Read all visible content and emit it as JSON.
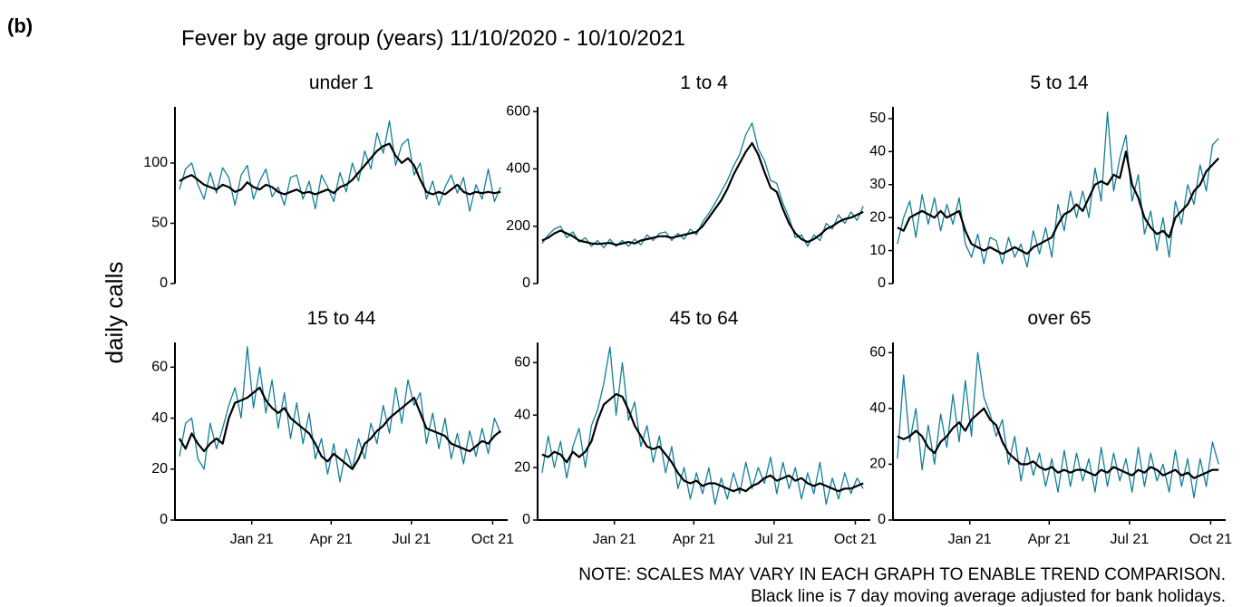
{
  "panel_label": "(b)",
  "title": "Fever by age group (years) 11/10/2020 - 10/10/2021",
  "y_label": "daily calls",
  "notes": [
    "NOTE: SCALES MAY VARY IN EACH GRAPH TO ENABLE TREND COMPARISON.",
    "Black line is 7 day moving average adjusted for bank holidays."
  ],
  "chart_data": [
    {
      "type": "line",
      "title": "under 1",
      "x": [
        0,
        7,
        14,
        21,
        28,
        35,
        42,
        49,
        56,
        63,
        70,
        77,
        84,
        91,
        98,
        105,
        112,
        119,
        126,
        133,
        140,
        147,
        154,
        161,
        168,
        175,
        182,
        189,
        196,
        203,
        210,
        217,
        224,
        231,
        238,
        245,
        252,
        259,
        266,
        273,
        280,
        287,
        294,
        301,
        308,
        315,
        322,
        329,
        336,
        343,
        350,
        357,
        364
      ],
      "series": [
        {
          "color": "#147f97",
          "values": [
            78,
            95,
            100,
            82,
            70,
            92,
            75,
            96,
            88,
            65,
            90,
            98,
            70,
            85,
            95,
            72,
            80,
            65,
            88,
            90,
            70,
            85,
            62,
            90,
            80,
            68,
            92,
            76,
            100,
            85,
            110,
            95,
            125,
            108,
            135,
            98,
            115,
            120,
            90,
            100,
            70,
            85,
            65,
            80,
            90,
            75,
            88,
            60,
            82,
            70,
            95,
            68,
            80
          ]
        },
        {
          "color": "#000000",
          "values": [
            85,
            88,
            90,
            86,
            82,
            80,
            78,
            82,
            80,
            76,
            78,
            84,
            80,
            78,
            82,
            80,
            76,
            74,
            76,
            78,
            75,
            76,
            74,
            76,
            78,
            75,
            80,
            82,
            86,
            92,
            98,
            104,
            110,
            114,
            116,
            106,
            100,
            104,
            98,
            86,
            76,
            74,
            76,
            74,
            78,
            82,
            76,
            74,
            76,
            75,
            76,
            75,
            76
          ]
        }
      ],
      "xlim": [
        -5,
        372
      ],
      "ylim": [
        0,
        145
      ],
      "yticks": [
        0,
        50,
        100
      ]
    },
    {
      "type": "line",
      "title": "1 to 4",
      "x": [
        0,
        7,
        14,
        21,
        28,
        35,
        42,
        49,
        56,
        63,
        70,
        77,
        84,
        91,
        98,
        105,
        112,
        119,
        126,
        133,
        140,
        147,
        154,
        161,
        168,
        175,
        182,
        189,
        196,
        203,
        210,
        217,
        224,
        231,
        238,
        245,
        252,
        259,
        266,
        273,
        280,
        287,
        294,
        301,
        308,
        315,
        322,
        329,
        336,
        343,
        350,
        357,
        364
      ],
      "series": [
        {
          "color": "#147f97",
          "values": [
            140,
            170,
            190,
            200,
            160,
            180,
            145,
            160,
            130,
            150,
            125,
            155,
            130,
            150,
            130,
            155,
            135,
            170,
            150,
            175,
            180,
            150,
            175,
            155,
            190,
            170,
            215,
            245,
            280,
            320,
            360,
            410,
            450,
            520,
            560,
            470,
            430,
            360,
            350,
            280,
            230,
            160,
            170,
            130,
            170,
            150,
            210,
            190,
            240,
            210,
            250,
            220,
            270
          ]
        },
        {
          "color": "#000000",
          "values": [
            150,
            160,
            175,
            185,
            175,
            165,
            150,
            145,
            140,
            138,
            140,
            142,
            135,
            140,
            145,
            140,
            150,
            155,
            160,
            165,
            165,
            160,
            165,
            170,
            175,
            180,
            200,
            230,
            260,
            290,
            330,
            380,
            420,
            460,
            490,
            450,
            390,
            335,
            320,
            260,
            210,
            175,
            155,
            145,
            155,
            170,
            190,
            200,
            215,
            225,
            230,
            240,
            250
          ]
        }
      ],
      "xlim": [
        -5,
        372
      ],
      "ylim": [
        0,
        610
      ],
      "yticks": [
        0,
        200,
        400,
        600
      ]
    },
    {
      "type": "line",
      "title": "5 to 14",
      "x": [
        0,
        7,
        14,
        21,
        28,
        35,
        42,
        49,
        56,
        63,
        70,
        77,
        84,
        91,
        98,
        105,
        112,
        119,
        126,
        133,
        140,
        147,
        154,
        161,
        168,
        175,
        182,
        189,
        196,
        203,
        210,
        217,
        224,
        231,
        238,
        245,
        252,
        259,
        266,
        273,
        280,
        287,
        294,
        301,
        308,
        315,
        322,
        329,
        336,
        343,
        350,
        357,
        364
      ],
      "series": [
        {
          "color": "#147f97",
          "values": [
            12,
            20,
            25,
            14,
            27,
            18,
            26,
            16,
            24,
            18,
            26,
            12,
            8,
            15,
            6,
            14,
            13,
            6,
            14,
            8,
            12,
            5,
            16,
            9,
            17,
            8,
            24,
            16,
            28,
            20,
            28,
            20,
            35,
            25,
            52,
            28,
            38,
            45,
            25,
            33,
            15,
            22,
            10,
            20,
            8,
            25,
            18,
            30,
            24,
            36,
            28,
            42,
            44
          ]
        },
        {
          "color": "#000000",
          "values": [
            17,
            16,
            20,
            21,
            22,
            21,
            20,
            22,
            20,
            21,
            22,
            16,
            12,
            11,
            10,
            11,
            10,
            9,
            10,
            11,
            10,
            9,
            11,
            12,
            13,
            14,
            18,
            21,
            22,
            24,
            22,
            26,
            30,
            31,
            30,
            33,
            32,
            40,
            30,
            26,
            20,
            17,
            15,
            16,
            14,
            20,
            22,
            24,
            28,
            30,
            34,
            36,
            38
          ]
        }
      ],
      "xlim": [
        -5,
        372
      ],
      "ylim": [
        0,
        53
      ],
      "yticks": [
        0,
        10,
        20,
        30,
        40,
        50
      ]
    },
    {
      "type": "line",
      "title": "15 to 44",
      "x": [
        0,
        7,
        14,
        21,
        28,
        35,
        42,
        49,
        56,
        63,
        70,
        77,
        84,
        91,
        98,
        105,
        112,
        119,
        126,
        133,
        140,
        147,
        154,
        161,
        168,
        175,
        182,
        189,
        196,
        203,
        210,
        217,
        224,
        231,
        238,
        245,
        252,
        259,
        266,
        273,
        280,
        287,
        294,
        301,
        308,
        315,
        322,
        329,
        336,
        343,
        350,
        357,
        364
      ],
      "series": [
        {
          "color": "#147f97",
          "values": [
            25,
            38,
            40,
            24,
            20,
            38,
            28,
            36,
            45,
            52,
            40,
            68,
            44,
            60,
            42,
            55,
            36,
            50,
            32,
            46,
            30,
            42,
            24,
            32,
            18,
            30,
            15,
            28,
            20,
            32,
            24,
            38,
            30,
            45,
            34,
            52,
            38,
            55,
            45,
            50,
            30,
            42,
            28,
            40,
            24,
            34,
            22,
            35,
            25,
            36,
            26,
            40,
            34
          ]
        },
        {
          "color": "#000000",
          "values": [
            32,
            28,
            34,
            30,
            27,
            30,
            32,
            30,
            40,
            46,
            47,
            48,
            50,
            52,
            47,
            44,
            42,
            44,
            40,
            38,
            36,
            34,
            30,
            25,
            23,
            26,
            24,
            22,
            20,
            24,
            30,
            32,
            35,
            37,
            40,
            42,
            44,
            46,
            48,
            42,
            36,
            35,
            34,
            33,
            30,
            29,
            28,
            27,
            29,
            31,
            30,
            33,
            35
          ]
        }
      ],
      "xlim": [
        -5,
        372
      ],
      "ylim": [
        0,
        69
      ],
      "yticks": [
        0,
        20,
        40,
        60
      ],
      "xticks": [
        {
          "value": 82,
          "label": "Jan 21"
        },
        {
          "value": 172,
          "label": "Apr 21"
        },
        {
          "value": 263,
          "label": "Jul 21"
        },
        {
          "value": 355,
          "label": "Oct 21"
        }
      ]
    },
    {
      "type": "line",
      "title": "45 to 64",
      "x": [
        0,
        7,
        14,
        21,
        28,
        35,
        42,
        49,
        56,
        63,
        70,
        77,
        84,
        91,
        98,
        105,
        112,
        119,
        126,
        133,
        140,
        147,
        154,
        161,
        168,
        175,
        182,
        189,
        196,
        203,
        210,
        217,
        224,
        231,
        238,
        245,
        252,
        259,
        266,
        273,
        280,
        287,
        294,
        301,
        308,
        315,
        322,
        329,
        336,
        343,
        350,
        357,
        364
      ],
      "series": [
        {
          "color": "#147f97",
          "values": [
            18,
            32,
            20,
            30,
            16,
            28,
            35,
            20,
            36,
            42,
            52,
            66,
            40,
            60,
            38,
            45,
            28,
            36,
            22,
            32,
            18,
            28,
            12,
            20,
            8,
            18,
            10,
            20,
            6,
            16,
            8,
            18,
            10,
            22,
            12,
            20,
            14,
            24,
            10,
            22,
            12,
            20,
            8,
            18,
            10,
            22,
            6,
            16,
            8,
            18,
            10,
            16,
            12
          ]
        },
        {
          "color": "#000000",
          "values": [
            25,
            24,
            26,
            25,
            22,
            26,
            24,
            26,
            30,
            38,
            44,
            46,
            48,
            47,
            42,
            36,
            32,
            28,
            27,
            28,
            25,
            22,
            18,
            15,
            14,
            15,
            13,
            14,
            14,
            13,
            12,
            11,
            12,
            11,
            13,
            14,
            16,
            17,
            15,
            16,
            17,
            15,
            16,
            14,
            13,
            14,
            13,
            12,
            11,
            12,
            12,
            13,
            14
          ]
        }
      ],
      "xlim": [
        -5,
        372
      ],
      "ylim": [
        0,
        67
      ],
      "yticks": [
        0,
        20,
        40,
        60
      ],
      "xticks": [
        {
          "value": 82,
          "label": "Jan 21"
        },
        {
          "value": 172,
          "label": "Apr 21"
        },
        {
          "value": 263,
          "label": "Jul 21"
        },
        {
          "value": 355,
          "label": "Oct 21"
        }
      ]
    },
    {
      "type": "line",
      "title": "over 65",
      "x": [
        0,
        7,
        14,
        21,
        28,
        35,
        42,
        49,
        56,
        63,
        70,
        77,
        84,
        91,
        98,
        105,
        112,
        119,
        126,
        133,
        140,
        147,
        154,
        161,
        168,
        175,
        182,
        189,
        196,
        203,
        210,
        217,
        224,
        231,
        238,
        245,
        252,
        259,
        266,
        273,
        280,
        287,
        294,
        301,
        308,
        315,
        322,
        329,
        336,
        343,
        350,
        357,
        364
      ],
      "series": [
        {
          "color": "#147f97",
          "values": [
            22,
            52,
            28,
            40,
            18,
            34,
            20,
            38,
            26,
            45,
            28,
            50,
            30,
            60,
            44,
            38,
            30,
            36,
            20,
            30,
            14,
            26,
            16,
            24,
            12,
            22,
            10,
            25,
            12,
            24,
            14,
            22,
            10,
            26,
            12,
            24,
            14,
            22,
            10,
            26,
            12,
            24,
            14,
            20,
            10,
            25,
            12,
            22,
            8,
            22,
            12,
            28,
            20
          ]
        },
        {
          "color": "#000000",
          "values": [
            30,
            29,
            30,
            32,
            30,
            26,
            24,
            28,
            30,
            33,
            35,
            32,
            36,
            38,
            40,
            36,
            34,
            28,
            24,
            22,
            20,
            20,
            21,
            19,
            18,
            19,
            17,
            18,
            17,
            18,
            18,
            17,
            16,
            18,
            17,
            19,
            18,
            17,
            16,
            18,
            17,
            19,
            18,
            16,
            17,
            18,
            16,
            17,
            15,
            16,
            17,
            18,
            18
          ]
        }
      ],
      "xlim": [
        -5,
        372
      ],
      "ylim": [
        0,
        63
      ],
      "yticks": [
        0,
        20,
        40,
        60
      ],
      "xticks": [
        {
          "value": 82,
          "label": "Jan 21"
        },
        {
          "value": 172,
          "label": "Apr 21"
        },
        {
          "value": 263,
          "label": "Jul 21"
        },
        {
          "value": 355,
          "label": "Oct 21"
        }
      ]
    }
  ]
}
